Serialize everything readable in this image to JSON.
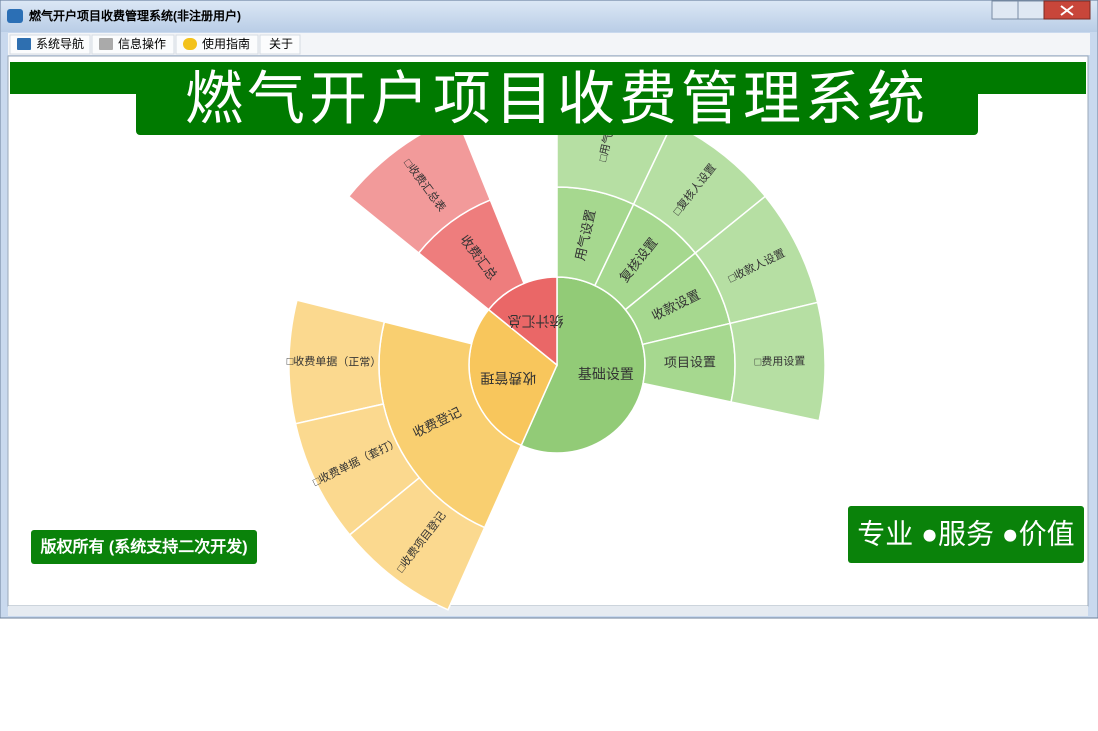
{
  "window": {
    "title": "燃气开户项目收费管理系统(非注册用户)"
  },
  "menu": [
    "系统导航",
    "信息操作",
    "使用指南",
    "关于"
  ],
  "banner": {
    "title": "燃气开户项目收费管理系统"
  },
  "sunburst": [
    {
      "label": "基础设置",
      "children": [
        {
          "label": "用气设置",
          "children": [
            {
              "label": "□用气"
            }
          ]
        },
        {
          "label": "复核设置",
          "children": [
            {
              "label": "□复核人设置"
            }
          ]
        },
        {
          "label": "收款设置",
          "children": [
            {
              "label": "□收款人设置"
            }
          ]
        },
        {
          "label": "项目设置",
          "children": [
            {
              "label": "□费用设置"
            }
          ]
        }
      ]
    },
    {
      "label": "收费管理",
      "children": [
        {
          "label": "收费登记",
          "children": [
            {
              "label": "□收费单据（正常）"
            },
            {
              "label": "□收费单据（套打）"
            },
            {
              "label": "□收费项目登记"
            }
          ]
        }
      ]
    },
    {
      "label": "统计汇总",
      "children": [
        {
          "label": "收费汇总",
          "children": [
            {
              "label": "□收费汇总表"
            }
          ]
        }
      ]
    }
  ],
  "footer": {
    "copyright": "版权所有 (系统支持二次开发)",
    "slogan": "专业 ●服务 ●价值"
  }
}
